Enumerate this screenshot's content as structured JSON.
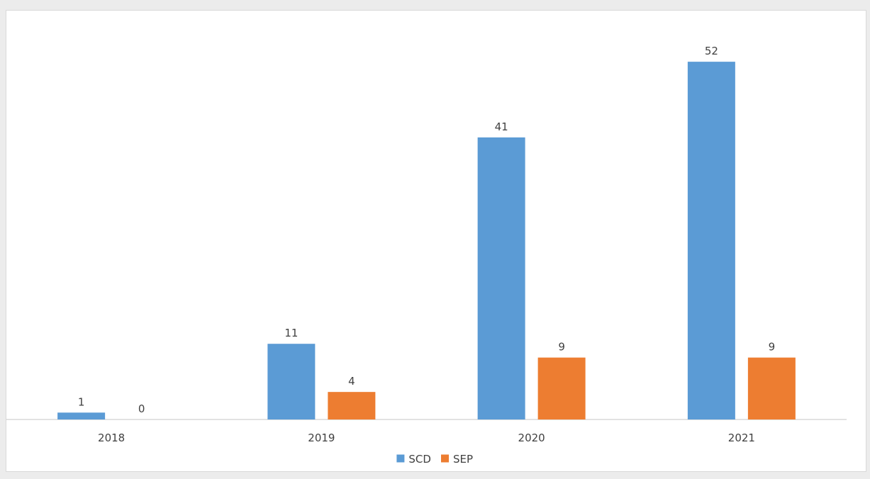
{
  "chart_data": {
    "type": "bar",
    "categories": [
      "2018",
      "2019",
      "2020",
      "2021"
    ],
    "series": [
      {
        "name": "SCD",
        "values": [
          1,
          11,
          41,
          52
        ],
        "color": "#5b9bd5"
      },
      {
        "name": "SEP",
        "values": [
          0,
          4,
          9,
          9
        ],
        "color": "#ed7d31"
      }
    ],
    "ylim": [
      0,
      55
    ],
    "grid": false,
    "data_labels": true,
    "legend": "bottom-center"
  }
}
